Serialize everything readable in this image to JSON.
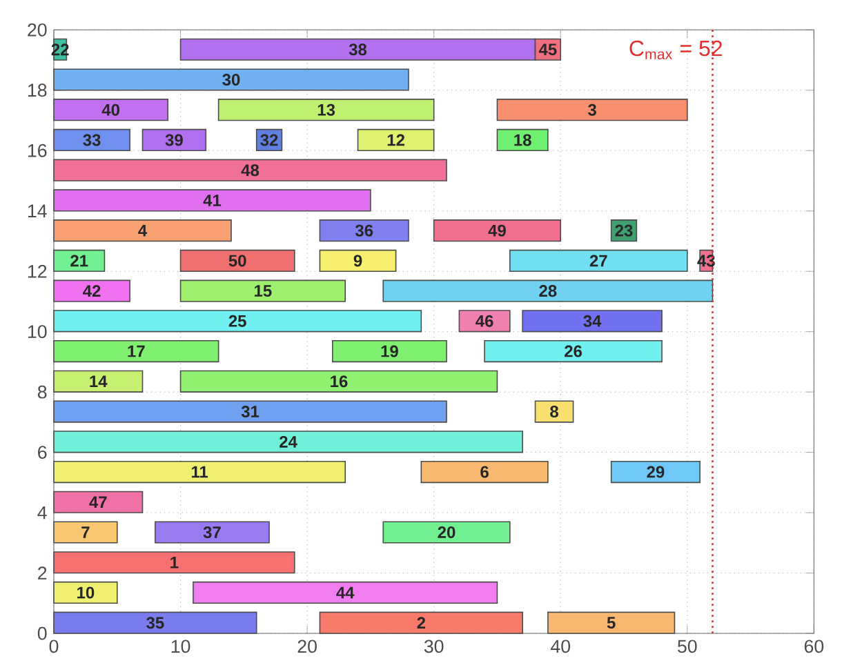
{
  "chart_data": {
    "type": "bar",
    "orientation": "horizontal",
    "xlim": [
      0,
      60
    ],
    "xticks": [
      0,
      10,
      20,
      30,
      40,
      50,
      60
    ],
    "ylim": [
      0,
      20
    ],
    "yticks": [
      0,
      2,
      4,
      6,
      8,
      10,
      12,
      14,
      16,
      18,
      20
    ],
    "grid": true,
    "ref_lines": [
      {
        "axis": "x",
        "value": 52,
        "label": "C$_{max}$ = 52",
        "color": "#e03030",
        "line_style": "dotted"
      }
    ],
    "series": [
      {
        "name": "35",
        "color": "#7b7bf0",
        "x": [
          0.35
        ],
        "base": [
          0
        ],
        "values": [
          16
        ]
      },
      {
        "name": "2",
        "color": "#f87a6a",
        "x": [
          0.35
        ],
        "base": [
          21
        ],
        "values": [
          16
        ]
      },
      {
        "name": "5",
        "color": "#f8b870",
        "x": [
          0.35
        ],
        "base": [
          39
        ],
        "values": [
          10
        ]
      },
      {
        "name": "10",
        "color": "#f0f070",
        "x": [
          1.35
        ],
        "base": [
          0
        ],
        "values": [
          5
        ]
      },
      {
        "name": "44",
        "color": "#f07ef0",
        "x": [
          1.35
        ],
        "base": [
          11
        ],
        "values": [
          24
        ]
      },
      {
        "name": "1",
        "color": "#f87070",
        "x": [
          2.35
        ],
        "base": [
          0
        ],
        "values": [
          19
        ]
      },
      {
        "name": "7",
        "color": "#f8c870",
        "x": [
          3.35
        ],
        "base": [
          0
        ],
        "values": [
          5
        ]
      },
      {
        "name": "37",
        "color": "#9a7af0",
        "x": [
          3.35
        ],
        "base": [
          8
        ],
        "values": [
          9
        ]
      },
      {
        "name": "20",
        "color": "#70f090",
        "x": [
          3.35
        ],
        "base": [
          26
        ],
        "values": [
          10
        ]
      },
      {
        "name": "47",
        "color": "#f070a8",
        "x": [
          4.35
        ],
        "base": [
          0
        ],
        "values": [
          7
        ]
      },
      {
        "name": "11",
        "color": "#f0f070",
        "x": [
          5.35
        ],
        "base": [
          0
        ],
        "values": [
          23
        ]
      },
      {
        "name": "6",
        "color": "#f8b870",
        "x": [
          5.35
        ],
        "base": [
          29
        ],
        "values": [
          10
        ]
      },
      {
        "name": "29",
        "color": "#70c8f8",
        "x": [
          5.35
        ],
        "base": [
          44
        ],
        "values": [
          7
        ]
      },
      {
        "name": "24",
        "color": "#70f0d8",
        "x": [
          6.35
        ],
        "base": [
          0
        ],
        "values": [
          37
        ]
      },
      {
        "name": "31",
        "color": "#70a0f0",
        "x": [
          7.35
        ],
        "base": [
          0
        ],
        "values": [
          31
        ]
      },
      {
        "name": "8",
        "color": "#f8e070",
        "x": [
          7.35
        ],
        "base": [
          38
        ],
        "values": [
          3
        ]
      },
      {
        "name": "14",
        "color": "#c8f070",
        "x": [
          8.35
        ],
        "base": [
          0
        ],
        "values": [
          7
        ]
      },
      {
        "name": "16",
        "color": "#90f070",
        "x": [
          8.35
        ],
        "base": [
          10
        ],
        "values": [
          25
        ]
      },
      {
        "name": "17",
        "color": "#80f070",
        "x": [
          9.35
        ],
        "base": [
          0
        ],
        "values": [
          13
        ]
      },
      {
        "name": "19",
        "color": "#80f070",
        "x": [
          9.35
        ],
        "base": [
          22
        ],
        "values": [
          9
        ]
      },
      {
        "name": "26",
        "color": "#70f0f0",
        "x": [
          9.35
        ],
        "base": [
          34
        ],
        "values": [
          14
        ]
      },
      {
        "name": "25",
        "color": "#70f0f0",
        "x": [
          10.35
        ],
        "base": [
          0
        ],
        "values": [
          29
        ]
      },
      {
        "name": "46",
        "color": "#f080b0",
        "x": [
          10.35
        ],
        "base": [
          32
        ],
        "values": [
          4
        ]
      },
      {
        "name": "34",
        "color": "#7070f0",
        "x": [
          10.35
        ],
        "base": [
          37
        ],
        "values": [
          11
        ]
      },
      {
        "name": "42",
        "color": "#f070f0",
        "x": [
          11.35
        ],
        "base": [
          0
        ],
        "values": [
          6
        ]
      },
      {
        "name": "15",
        "color": "#a0f070",
        "x": [
          11.35
        ],
        "base": [
          10
        ],
        "values": [
          13
        ]
      },
      {
        "name": "28",
        "color": "#70d0f0",
        "x": [
          11.35
        ],
        "base": [
          26
        ],
        "values": [
          26
        ]
      },
      {
        "name": "21",
        "color": "#70f090",
        "x": [
          12.35
        ],
        "base": [
          0
        ],
        "values": [
          4
        ]
      },
      {
        "name": "50",
        "color": "#f07070",
        "x": [
          12.35
        ],
        "base": [
          10
        ],
        "values": [
          9
        ]
      },
      {
        "name": "9",
        "color": "#f8f070",
        "x": [
          12.35
        ],
        "base": [
          21
        ],
        "values": [
          6
        ]
      },
      {
        "name": "27",
        "color": "#70e0f0",
        "x": [
          12.35
        ],
        "base": [
          36
        ],
        "values": [
          14
        ]
      },
      {
        "name": "43",
        "color": "#f07090",
        "x": [
          12.35
        ],
        "base": [
          51
        ],
        "values": [
          1
        ]
      },
      {
        "name": "4",
        "color": "#f8a070",
        "x": [
          13.35
        ],
        "base": [
          0
        ],
        "values": [
          14
        ]
      },
      {
        "name": "36",
        "color": "#8080f0",
        "x": [
          13.35
        ],
        "base": [
          21
        ],
        "values": [
          7
        ]
      },
      {
        "name": "49",
        "color": "#f07090",
        "x": [
          13.35
        ],
        "base": [
          30
        ],
        "values": [
          10
        ]
      },
      {
        "name": "23",
        "color": "#40a070",
        "x": [
          13.35
        ],
        "base": [
          44
        ],
        "values": [
          2
        ]
      },
      {
        "name": "41",
        "color": "#e070f0",
        "x": [
          14.35
        ],
        "base": [
          0
        ],
        "values": [
          25
        ]
      },
      {
        "name": "48",
        "color": "#f07098",
        "x": [
          15.35
        ],
        "base": [
          0
        ],
        "values": [
          31
        ]
      },
      {
        "name": "33",
        "color": "#7090f0",
        "x": [
          16.35
        ],
        "base": [
          0
        ],
        "values": [
          6
        ]
      },
      {
        "name": "39",
        "color": "#b070f0",
        "x": [
          16.35
        ],
        "base": [
          7
        ],
        "values": [
          5
        ]
      },
      {
        "name": "32",
        "color": "#6080e0",
        "x": [
          16.35
        ],
        "base": [
          16
        ],
        "values": [
          2
        ]
      },
      {
        "name": "12",
        "color": "#e0f070",
        "x": [
          16.35
        ],
        "base": [
          24
        ],
        "values": [
          6
        ]
      },
      {
        "name": "18",
        "color": "#70f070",
        "x": [
          16.35
        ],
        "base": [
          35
        ],
        "values": [
          4
        ]
      },
      {
        "name": "40",
        "color": "#c070f0",
        "x": [
          17.35
        ],
        "base": [
          0
        ],
        "values": [
          9
        ]
      },
      {
        "name": "13",
        "color": "#c0f070",
        "x": [
          17.35
        ],
        "base": [
          13
        ],
        "values": [
          17
        ]
      },
      {
        "name": "3",
        "color": "#f89070",
        "x": [
          17.35
        ],
        "base": [
          35
        ],
        "values": [
          15
        ]
      },
      {
        "name": "30",
        "color": "#70b0f0",
        "x": [
          18.35
        ],
        "base": [
          0
        ],
        "values": [
          28
        ]
      },
      {
        "name": "22",
        "color": "#40c0a0",
        "x": [
          19.35
        ],
        "base": [
          0
        ],
        "values": [
          1
        ]
      },
      {
        "name": "38",
        "color": "#b070f0",
        "x": [
          19.35
        ],
        "base": [
          10
        ],
        "values": [
          28
        ]
      },
      {
        "name": "45",
        "color": "#f07080",
        "x": [
          19.35
        ],
        "base": [
          38
        ],
        "values": [
          2
        ]
      }
    ]
  }
}
